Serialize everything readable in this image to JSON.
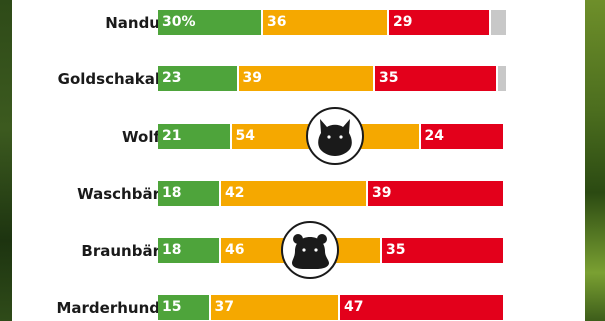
{
  "chart_data": {
    "type": "bar",
    "stacked": true,
    "orientation": "horizontal",
    "categories": [
      "Nandu",
      "Goldschakal",
      "Wolf",
      "Waschbär",
      "Braunbär",
      "Marderhund"
    ],
    "series": [
      {
        "color": "#4ea43b",
        "values": [
          30,
          23,
          21,
          18,
          18,
          15
        ],
        "labels": [
          "30%",
          "23",
          "21",
          "18",
          "18",
          "15"
        ]
      },
      {
        "color": "#f5a800",
        "values": [
          36,
          39,
          54,
          42,
          46,
          37
        ],
        "labels": [
          "36",
          "39",
          "54",
          "42",
          "46",
          "37"
        ]
      },
      {
        "color": "#e3001b",
        "values": [
          29,
          35,
          24,
          39,
          35,
          47
        ],
        "labels": [
          "29",
          "35",
          "24",
          "39",
          "35",
          "47"
        ]
      },
      {
        "color": "#c8c8c8",
        "values": [
          5,
          3,
          0,
          0,
          0,
          0
        ],
        "labels": [
          "",
          "",
          "",
          "",
          "",
          ""
        ]
      }
    ],
    "xlim": [
      0,
      100
    ],
    "grid": false,
    "legend": "none",
    "icons": [
      {
        "category": "Wolf",
        "icon": "wolf-head-icon"
      },
      {
        "category": "Braunbär",
        "icon": "bear-head-icon"
      }
    ]
  }
}
